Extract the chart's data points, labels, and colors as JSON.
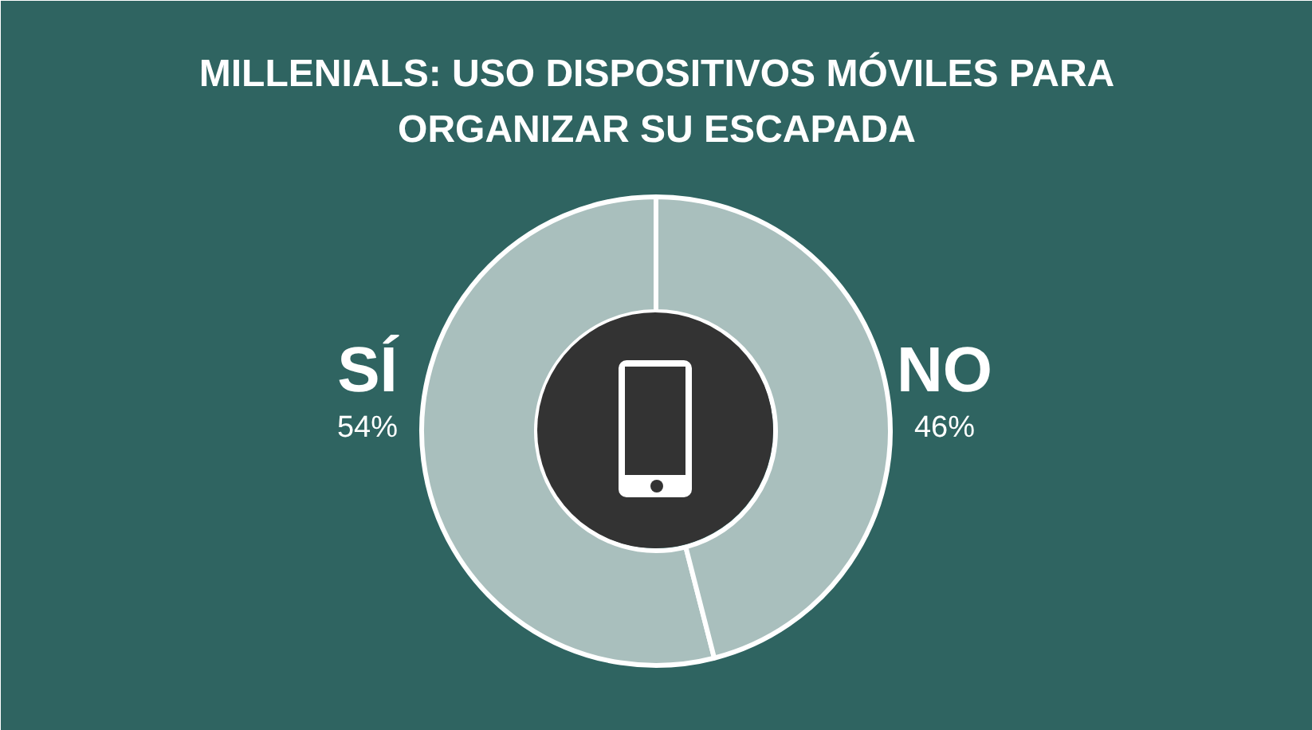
{
  "chart_data": {
    "type": "donut",
    "title": "MILLENIALS: USO DISPOSITIVOS MÓVILES PARA ORGANIZAR SU ESCAPADA",
    "categories": [
      "SÍ",
      "NO"
    ],
    "values": [
      54,
      46
    ],
    "colors": [
      "#a9bfbd",
      "#a9bfbd"
    ],
    "value_labels": [
      "54%",
      "46%"
    ]
  }
}
